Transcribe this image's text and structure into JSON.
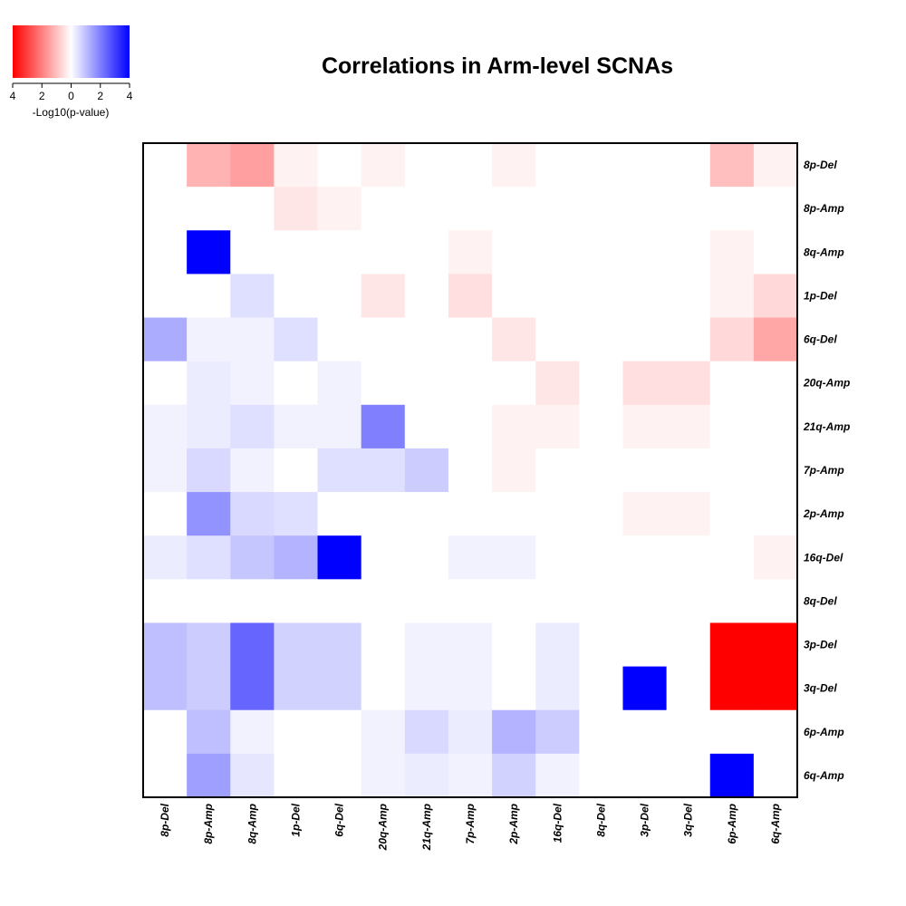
{
  "chart_data": {
    "type": "heatmap",
    "title": "Correlations in Arm-level SCNAs",
    "xlabel": "",
    "ylabel": "",
    "legend": {
      "title": "-Log10(p-value)",
      "ticks": [
        "4",
        "2",
        "0",
        "2",
        "4"
      ],
      "range": [
        -4,
        4
      ],
      "low_color": "#ff0000",
      "mid_color": "#ffffff",
      "high_color": "#0000ff",
      "placement": "top-left"
    },
    "columns": [
      "8p-Del",
      "8p-Amp",
      "8q-Amp",
      "1p-Del",
      "6q-Del",
      "20q-Amp",
      "21q-Amp",
      "7p-Amp",
      "2p-Amp",
      "16q-Del",
      "8q-Del",
      "3p-Del",
      "3q-Del",
      "6p-Amp",
      "6q-Amp"
    ],
    "rows": [
      "8p-Del",
      "8p-Amp",
      "8q-Amp",
      "1p-Del",
      "6q-Del",
      "20q-Amp",
      "21q-Amp",
      "7p-Amp",
      "2p-Amp",
      "16q-Del",
      "8q-Del",
      "3p-Del",
      "3q-Del",
      "6p-Amp",
      "6q-Amp"
    ],
    "values": [
      [
        0,
        -1.2,
        -1.5,
        -0.2,
        0,
        -0.2,
        0,
        0,
        -0.2,
        0,
        0,
        0,
        0,
        -1.0,
        -0.2
      ],
      [
        0,
        0,
        0,
        -0.4,
        -0.2,
        0,
        0,
        0,
        0,
        0,
        0,
        0,
        0,
        0,
        0
      ],
      [
        0,
        4,
        0,
        0,
        0,
        0,
        0,
        -0.2,
        0,
        0,
        0,
        0,
        0,
        -0.2,
        0
      ],
      [
        0,
        0,
        0.5,
        0,
        0,
        -0.4,
        0,
        -0.5,
        0,
        0,
        0,
        0,
        0,
        -0.2,
        -0.6
      ],
      [
        1.3,
        0.2,
        0.2,
        0.5,
        0,
        0,
        0,
        0,
        -0.4,
        0,
        0,
        0,
        0,
        -0.6,
        -1.4
      ],
      [
        0,
        0.3,
        0.2,
        0,
        0.2,
        0,
        0,
        0,
        0,
        -0.4,
        0,
        -0.5,
        -0.5,
        0,
        0
      ],
      [
        0.2,
        0.3,
        0.5,
        0.2,
        0.2,
        2.0,
        0,
        0,
        -0.2,
        -0.2,
        0,
        -0.2,
        -0.2,
        0,
        0
      ],
      [
        0.2,
        0.6,
        0.2,
        0,
        0.5,
        0.5,
        0.8,
        0,
        -0.2,
        0,
        0,
        0,
        0,
        0,
        0
      ],
      [
        0,
        1.7,
        0.6,
        0.5,
        0,
        0,
        0,
        0,
        0,
        0,
        0,
        -0.2,
        -0.2,
        0,
        0
      ],
      [
        0.3,
        0.5,
        0.9,
        1.2,
        4,
        0,
        0,
        0.2,
        0.2,
        0,
        0,
        0,
        0,
        0,
        -0.2
      ],
      [
        0,
        0,
        0,
        0,
        0,
        0,
        0,
        0,
        0,
        0,
        0,
        0,
        0,
        0,
        0
      ],
      [
        1.0,
        0.8,
        2.4,
        0.7,
        0.7,
        0,
        0.2,
        0.2,
        0,
        0.3,
        0,
        0,
        0,
        -4,
        -4
      ],
      [
        1.0,
        0.8,
        2.4,
        0.7,
        0.7,
        0,
        0.2,
        0.2,
        0,
        0.3,
        0,
        4,
        0,
        -4,
        -4
      ],
      [
        0,
        1.0,
        0.2,
        0,
        0,
        0.2,
        0.6,
        0.3,
        1.2,
        0.8,
        0,
        0,
        0,
        0,
        0
      ],
      [
        0,
        1.5,
        0.4,
        0,
        0,
        0.2,
        0.3,
        0.2,
        0.7,
        0.2,
        0,
        0,
        0,
        4,
        0
      ]
    ]
  }
}
